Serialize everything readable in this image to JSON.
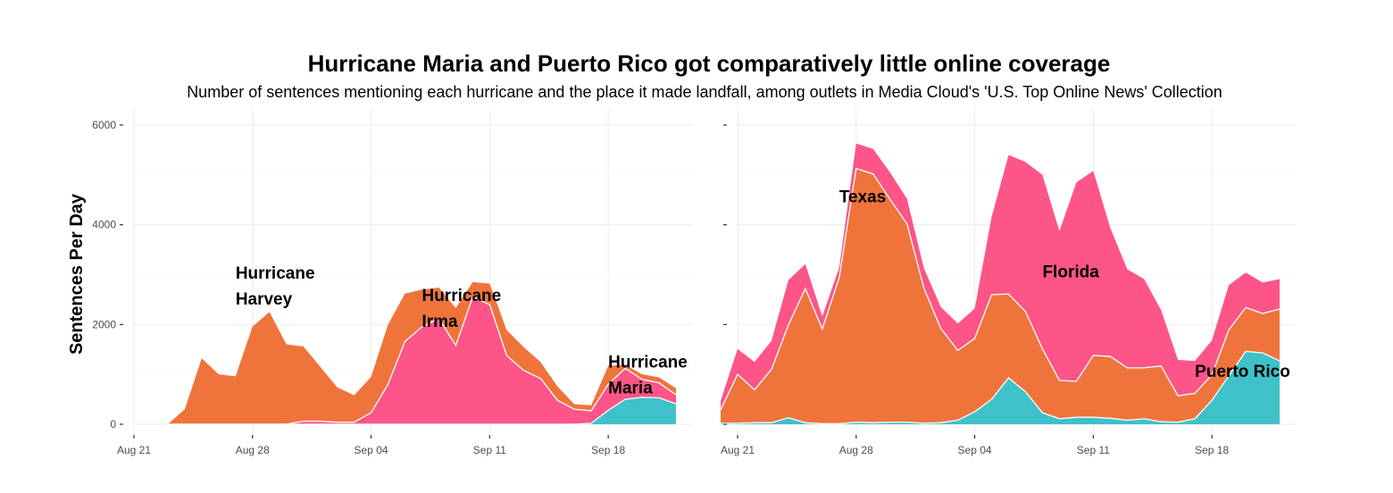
{
  "chart_data": {
    "type": "area",
    "title": "Hurricane Maria and Puerto Rico got comparatively little online coverage",
    "subtitle": "Number of sentences mentioning each hurricane and the place it made landfall, among outlets in Media Cloud's 'U.S. Top Online News' Collection",
    "ylabel": "Sentences Per Day",
    "xlabel": "",
    "ylim": [
      0,
      6000
    ],
    "y_ticks": [
      0,
      2000,
      4000,
      6000
    ],
    "y_tick_labels": [
      "0",
      "2000",
      "4000",
      "6000"
    ],
    "x_range": [
      "2017-08-21",
      "2017-09-23"
    ],
    "x_ticks": [
      "2017-08-21",
      "2017-08-28",
      "2017-09-04",
      "2017-09-11",
      "2017-09-18"
    ],
    "x_tick_labels": [
      "Aug 21",
      "Aug 28",
      "Sep 04",
      "Sep 11",
      "Sep 18"
    ],
    "stacked": true,
    "grid": true,
    "colors": {
      "cyan": "#3ec1c9",
      "pink": "#fd5587",
      "orange": "#ef743c"
    },
    "panels": [
      {
        "name": "hurricanes",
        "series": [
          {
            "color": "cyan",
            "x": [
              "2017-08-23",
              "2017-08-24",
              "2017-08-25",
              "2017-08-26",
              "2017-08-27",
              "2017-08-28",
              "2017-08-29",
              "2017-08-30",
              "2017-08-31",
              "2017-09-01",
              "2017-09-02",
              "2017-09-03",
              "2017-09-04",
              "2017-09-05",
              "2017-09-06",
              "2017-09-07",
              "2017-09-08",
              "2017-09-09",
              "2017-09-10",
              "2017-09-11",
              "2017-09-12",
              "2017-09-13",
              "2017-09-14",
              "2017-09-15",
              "2017-09-16",
              "2017-09-17",
              "2017-09-18",
              "2017-09-19",
              "2017-09-20",
              "2017-09-21",
              "2017-09-22"
            ],
            "values": [
              0,
              0,
              0,
              0,
              0,
              0,
              0,
              0,
              0,
              0,
              0,
              0,
              0,
              0,
              0,
              0,
              0,
              0,
              0,
              0,
              0,
              0,
              0,
              0,
              0,
              20,
              280,
              500,
              540,
              530,
              410
            ]
          },
          {
            "color": "pink",
            "x": [
              "2017-08-23",
              "2017-08-24",
              "2017-08-25",
              "2017-08-26",
              "2017-08-27",
              "2017-08-28",
              "2017-08-29",
              "2017-08-30",
              "2017-08-31",
              "2017-09-01",
              "2017-09-02",
              "2017-09-03",
              "2017-09-04",
              "2017-09-05",
              "2017-09-06",
              "2017-09-07",
              "2017-09-08",
              "2017-09-09",
              "2017-09-10",
              "2017-09-11",
              "2017-09-12",
              "2017-09-13",
              "2017-09-14",
              "2017-09-15",
              "2017-09-16",
              "2017-09-17",
              "2017-09-18",
              "2017-09-19",
              "2017-09-20",
              "2017-09-21",
              "2017-09-22"
            ],
            "values": [
              0,
              0,
              0,
              0,
              0,
              0,
              0,
              0,
              60,
              60,
              40,
              40,
              230,
              800,
              1660,
              1950,
              2120,
              1580,
              2550,
              2400,
              1380,
              1080,
              920,
              480,
              300,
              250,
              520,
              620,
              360,
              300,
              180
            ]
          },
          {
            "color": "orange",
            "x": [
              "2017-08-23",
              "2017-08-24",
              "2017-08-25",
              "2017-08-26",
              "2017-08-27",
              "2017-08-28",
              "2017-08-29",
              "2017-08-30",
              "2017-08-31",
              "2017-09-01",
              "2017-09-02",
              "2017-09-03",
              "2017-09-04",
              "2017-09-05",
              "2017-09-06",
              "2017-09-07",
              "2017-09-08",
              "2017-09-09",
              "2017-09-10",
              "2017-09-11",
              "2017-09-12",
              "2017-09-13",
              "2017-09-14",
              "2017-09-15",
              "2017-09-16",
              "2017-09-17",
              "2017-09-18",
              "2017-09-19",
              "2017-09-20",
              "2017-09-21",
              "2017-09-22"
            ],
            "values": [
              0,
              300,
              1320,
              1000,
              960,
              1960,
              2250,
              1600,
              1500,
              1090,
              700,
              540,
              720,
              1200,
              960,
              750,
              620,
              750,
              300,
              420,
              510,
              470,
              330,
              280,
              100,
              110,
              370,
              70,
              100,
              110,
              130
            ]
          }
        ],
        "labels": [
          {
            "lines": [
              "Hurricane",
              "Harvey"
            ],
            "x": "2017-08-27",
            "y": 2400
          },
          {
            "lines": [
              "Hurricane",
              "Irma"
            ],
            "x": "2017-09-07",
            "y": 1950
          },
          {
            "lines": [
              "Hurricane",
              "Maria"
            ],
            "x": "2017-09-18",
            "y": 620
          }
        ]
      },
      {
        "name": "places",
        "series": [
          {
            "color": "cyan",
            "x": [
              "2017-08-20",
              "2017-08-21",
              "2017-08-22",
              "2017-08-23",
              "2017-08-24",
              "2017-08-25",
              "2017-08-26",
              "2017-08-27",
              "2017-08-28",
              "2017-08-29",
              "2017-08-30",
              "2017-08-31",
              "2017-09-01",
              "2017-09-02",
              "2017-09-03",
              "2017-09-04",
              "2017-09-05",
              "2017-09-06",
              "2017-09-07",
              "2017-09-08",
              "2017-09-09",
              "2017-09-10",
              "2017-09-11",
              "2017-09-12",
              "2017-09-13",
              "2017-09-14",
              "2017-09-15",
              "2017-09-16",
              "2017-09-17",
              "2017-09-18",
              "2017-09-19",
              "2017-09-20",
              "2017-09-21",
              "2017-09-22"
            ],
            "values": [
              20,
              20,
              30,
              30,
              130,
              30,
              10,
              10,
              40,
              30,
              40,
              40,
              20,
              30,
              80,
              250,
              500,
              930,
              650,
              230,
              110,
              140,
              140,
              120,
              80,
              110,
              50,
              40,
              110,
              480,
              970,
              1460,
              1430,
              1270
            ]
          },
          {
            "color": "orange",
            "x": [
              "2017-08-20",
              "2017-08-21",
              "2017-08-22",
              "2017-08-23",
              "2017-08-24",
              "2017-08-25",
              "2017-08-26",
              "2017-08-27",
              "2017-08-28",
              "2017-08-29",
              "2017-08-30",
              "2017-08-31",
              "2017-09-01",
              "2017-09-02",
              "2017-09-03",
              "2017-09-04",
              "2017-09-05",
              "2017-09-06",
              "2017-09-07",
              "2017-09-08",
              "2017-09-09",
              "2017-09-10",
              "2017-09-11",
              "2017-09-12",
              "2017-09-13",
              "2017-09-14",
              "2017-09-15",
              "2017-09-16",
              "2017-09-17",
              "2017-09-18",
              "2017-09-19",
              "2017-09-20",
              "2017-09-21",
              "2017-09-22"
            ],
            "values": [
              270,
              980,
              660,
              1070,
              1860,
              2690,
              1900,
              2930,
              5090,
              4990,
              4470,
              3980,
              2710,
              1890,
              1400,
              1470,
              2100,
              1680,
              1610,
              1280,
              770,
              720,
              1240,
              1240,
              1050,
              1020,
              1120,
              530,
              510,
              510,
              920,
              880,
              790,
              1040
            ]
          },
          {
            "color": "pink",
            "x": [
              "2017-08-20",
              "2017-08-21",
              "2017-08-22",
              "2017-08-23",
              "2017-08-24",
              "2017-08-25",
              "2017-08-26",
              "2017-08-27",
              "2017-08-28",
              "2017-08-29",
              "2017-08-30",
              "2017-08-31",
              "2017-09-01",
              "2017-09-02",
              "2017-09-03",
              "2017-09-04",
              "2017-09-05",
              "2017-09-06",
              "2017-09-07",
              "2017-09-08",
              "2017-09-09",
              "2017-09-10",
              "2017-09-11",
              "2017-09-12",
              "2017-09-13",
              "2017-09-14",
              "2017-09-15",
              "2017-09-16",
              "2017-09-17",
              "2017-09-18",
              "2017-09-19",
              "2017-09-20",
              "2017-09-21",
              "2017-09-22"
            ],
            "values": [
              180,
              510,
              560,
              570,
              900,
              490,
              250,
              200,
              500,
              500,
              540,
              500,
              400,
              430,
              540,
              600,
              1560,
              2790,
              3000,
              3490,
              2990,
              3990,
              3700,
              2580,
              1980,
              1780,
              1120,
              720,
              650,
              690,
              900,
              700,
              620,
              600
            ]
          }
        ],
        "labels": [
          {
            "lines": [
              "Texas"
            ],
            "x": "2017-08-27",
            "y": 4450
          },
          {
            "lines": [
              "Florida"
            ],
            "x": "2017-09-08",
            "y": 2950
          },
          {
            "lines": [
              "Puerto Rico"
            ],
            "x": "2017-09-17",
            "y": 950
          }
        ]
      }
    ]
  }
}
